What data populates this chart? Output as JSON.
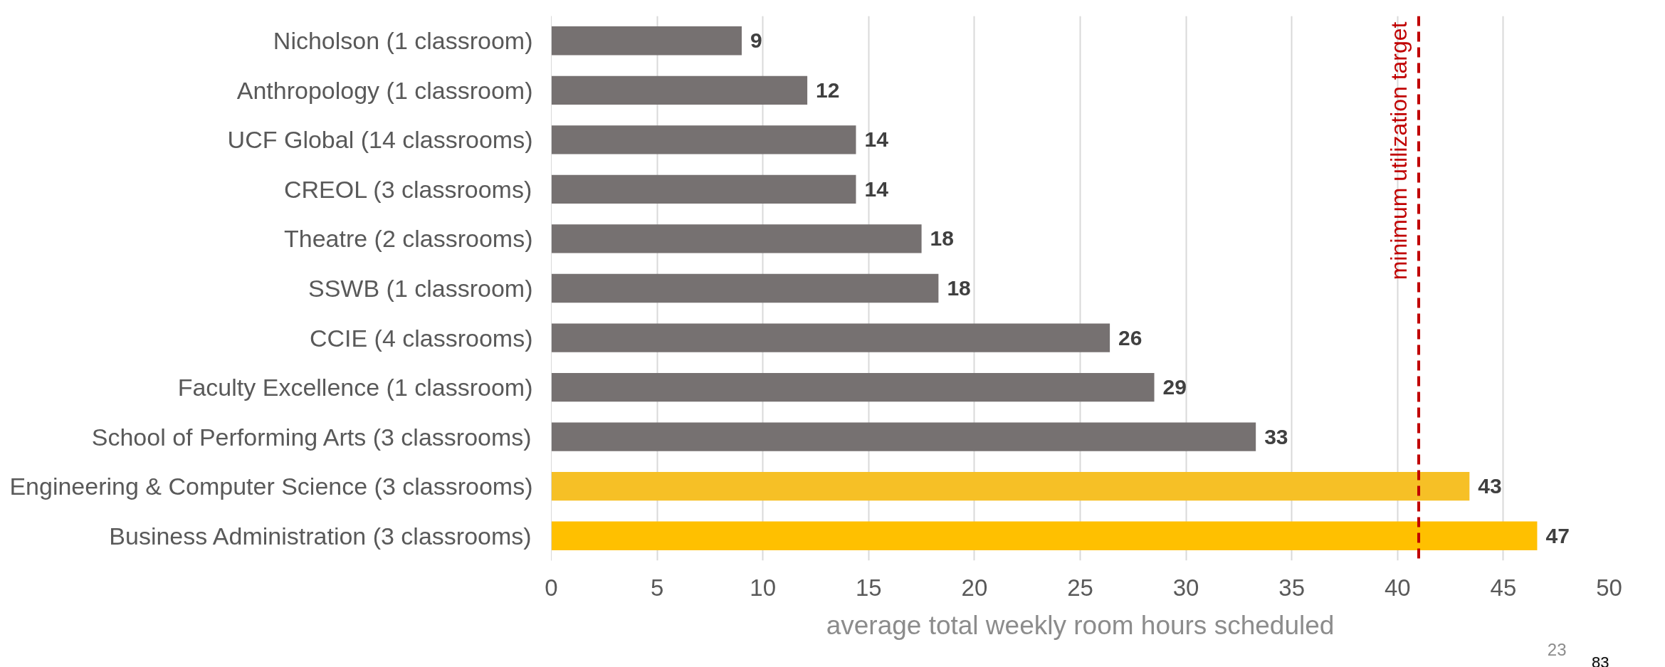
{
  "chart_data": {
    "type": "bar",
    "orientation": "horizontal",
    "xlabel": "average total weekly room hours scheduled",
    "categories": [
      "Nicholson (1 classroom)",
      "Anthropology (1 classroom)",
      "UCF Global (14 classrooms)",
      "CREOL (3 classrooms)",
      "Theatre (2 classrooms)",
      "SSWB (1 classroom)",
      "CCIE (4 classrooms)",
      "Faculty Excellence (1 classroom)",
      "School of Performing Arts (3 classrooms)",
      "Engineering & Computer Science (3 classrooms)",
      "Business Administration (3 classrooms)"
    ],
    "values": [
      9.0,
      12.1,
      14.4,
      14.4,
      17.5,
      18.3,
      26.4,
      28.5,
      33.3,
      43.4,
      46.6
    ],
    "value_labels": [
      "9",
      "12",
      "14",
      "14",
      "18",
      "18",
      "26",
      "29",
      "33",
      "43",
      "47"
    ],
    "colors": [
      "#767171",
      "#767171",
      "#767171",
      "#767171",
      "#767171",
      "#767171",
      "#767171",
      "#767171",
      "#767171",
      "#f6c026",
      "#ffc000"
    ],
    "xlim": [
      0,
      50
    ],
    "xticks": [
      0,
      5,
      10,
      15,
      20,
      25,
      30,
      35,
      40,
      45,
      50
    ],
    "grid": "x",
    "ref_lines": [
      {
        "axis": "x",
        "value": 41,
        "label": "minimum utilization target",
        "color": "#c00000",
        "line_style": "dashed"
      }
    ],
    "annotations": [
      "23",
      "83"
    ]
  }
}
